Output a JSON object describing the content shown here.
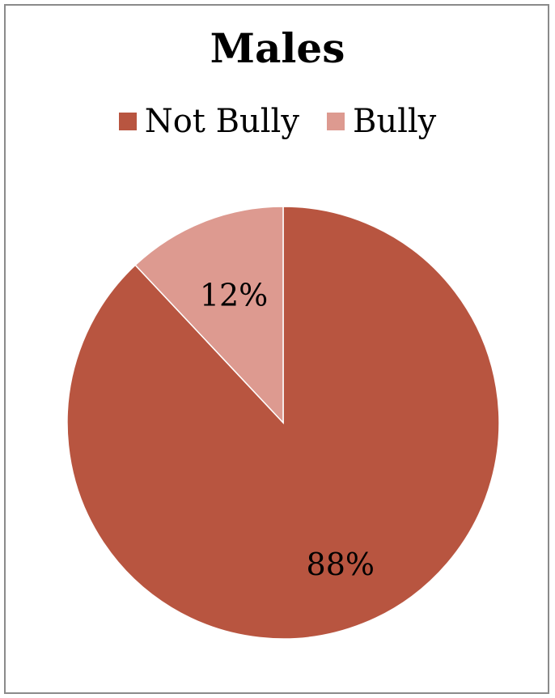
{
  "chart_data": {
    "type": "pie",
    "title": "Males",
    "legend_position": "top",
    "slices": [
      {
        "label": "Not Bully",
        "value": 88,
        "display": "88%",
        "color": "#b85540"
      },
      {
        "label": "Bully",
        "value": 12,
        "display": "12%",
        "color": "#dd9a90"
      }
    ]
  },
  "colors": {
    "slice_border": "#ffffff",
    "frame_border": "#8a8a8a"
  }
}
